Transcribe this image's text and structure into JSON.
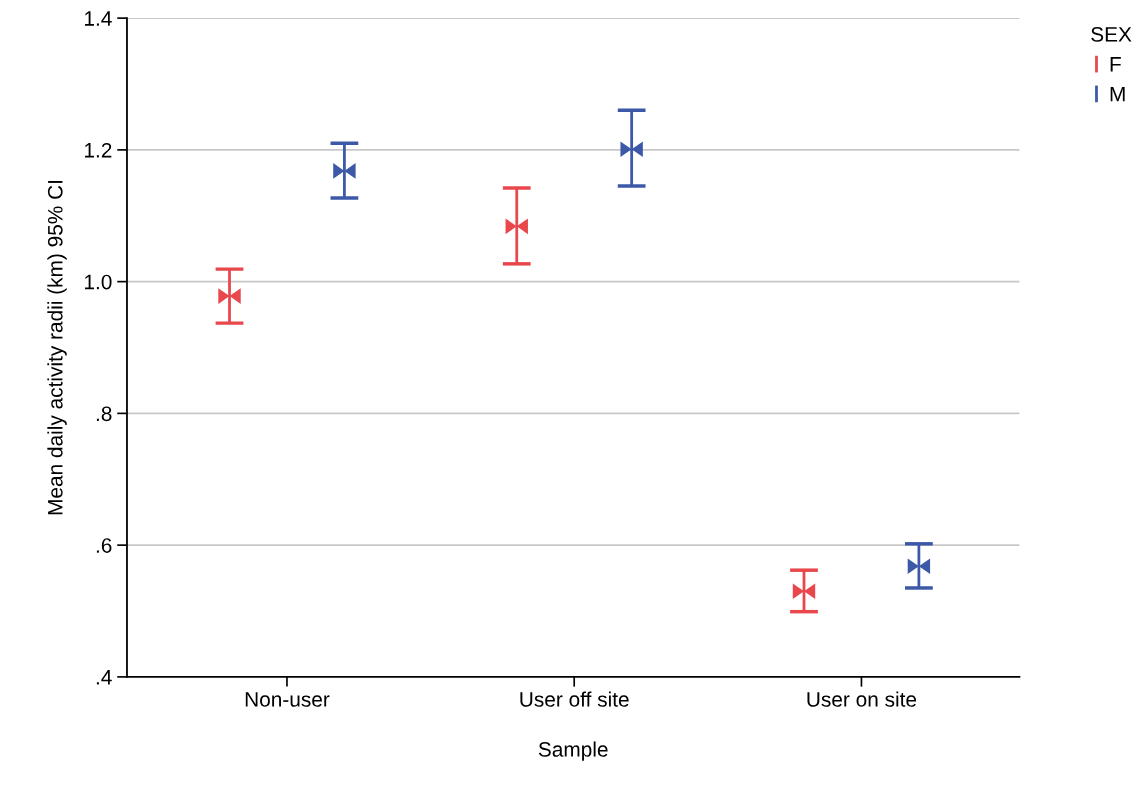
{
  "chart_data": {
    "type": "scatter",
    "xlabel": "Sample",
    "ylabel": "Mean daily activity radii (km) 95% CI",
    "categories": [
      "Non-user",
      "User off site",
      "User on site"
    ],
    "series": [
      {
        "name": "F",
        "color": "#e8474c",
        "values": [
          0.978,
          1.084,
          0.53
        ],
        "errors": [
          [
            0.937,
            1.019
          ],
          [
            1.027,
            1.142
          ],
          [
            0.499,
            0.562
          ]
        ]
      },
      {
        "name": "M",
        "color": "#3c59a8",
        "values": [
          1.168,
          1.201,
          0.568
        ],
        "errors": [
          [
            1.127,
            1.21
          ],
          [
            1.145,
            1.26
          ],
          [
            0.535,
            0.602
          ]
        ]
      }
    ],
    "ylim": [
      0.4,
      1.4
    ],
    "yticks": [
      {
        "value": 0.4,
        "label": ".4"
      },
      {
        "value": 0.6,
        "label": ".6"
      },
      {
        "value": 0.8,
        "label": ".8"
      },
      {
        "value": 1.0,
        "label": "1.0"
      },
      {
        "value": 1.2,
        "label": "1.2"
      },
      {
        "value": 1.4,
        "label": "1.4"
      }
    ],
    "grid": "y",
    "legend": "top right",
    "legend_title": "SEX",
    "marker": "triangle"
  }
}
